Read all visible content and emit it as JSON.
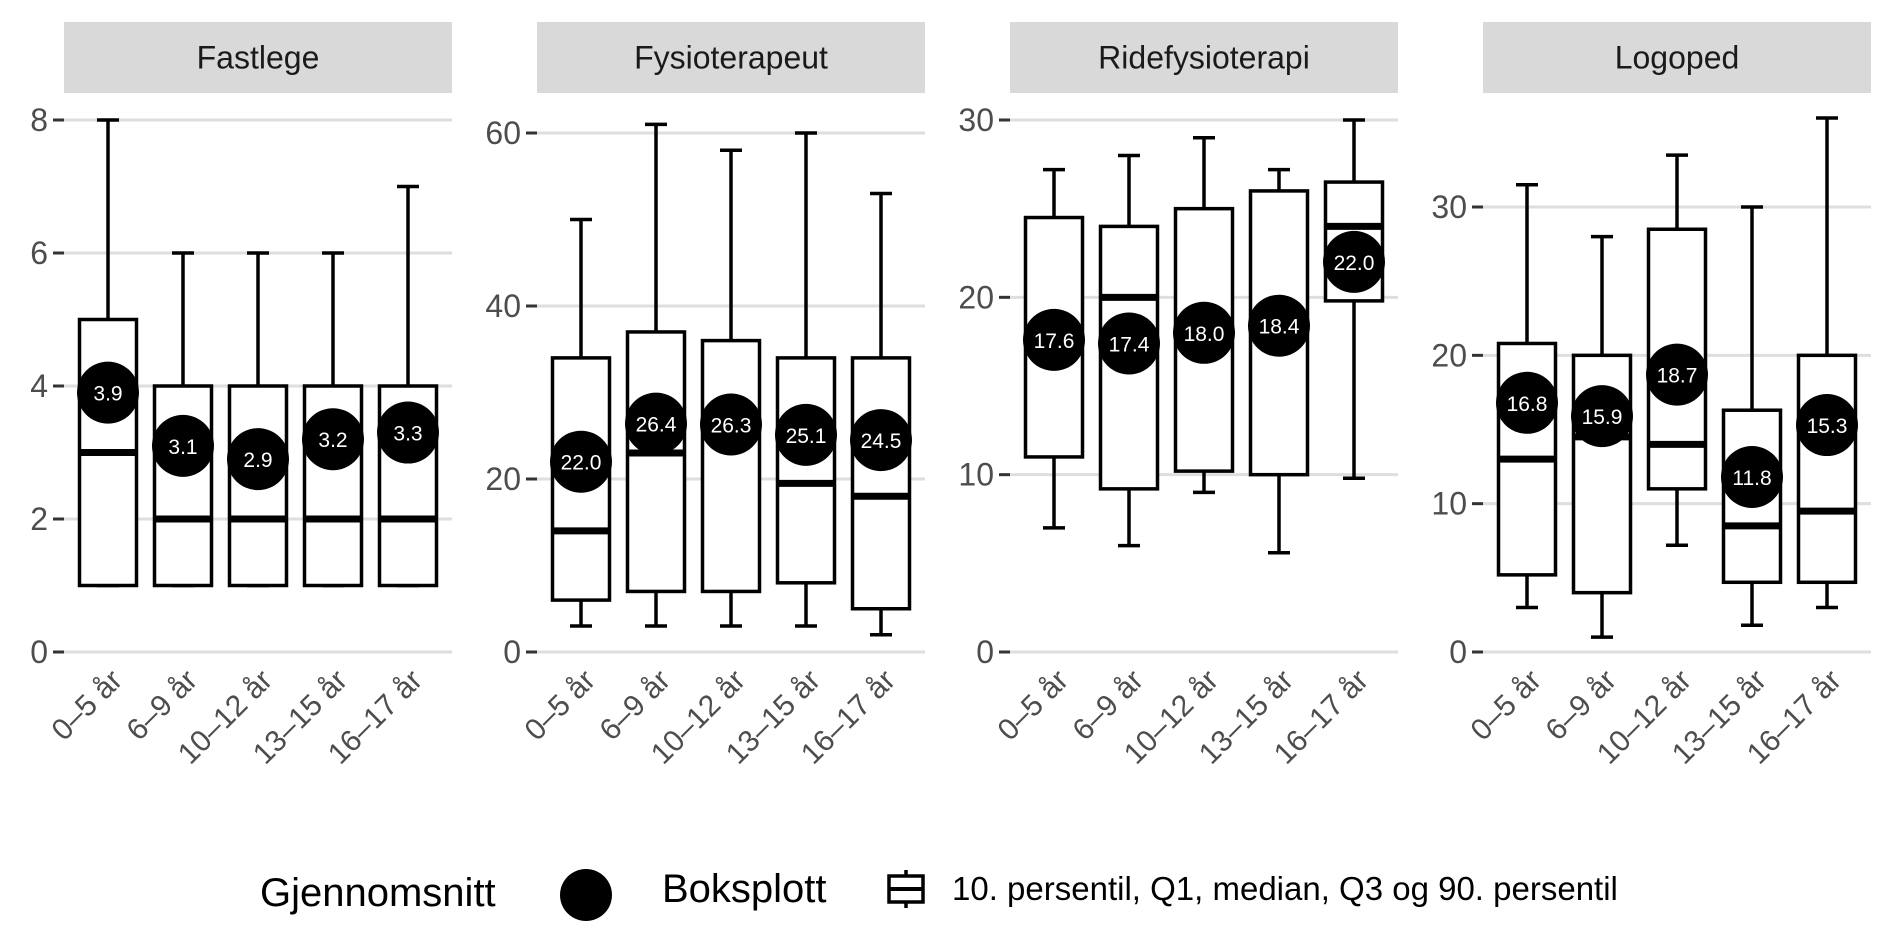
{
  "chart_data": {
    "type": "box",
    "categories": [
      "0–5 år",
      "6–9 år",
      "10–12 år",
      "13–15 år",
      "16–17 år"
    ],
    "panels": [
      {
        "title": "Fastlege",
        "ylim": [
          0,
          8
        ],
        "ticks": [
          0,
          2,
          4,
          6,
          8
        ],
        "boxes": [
          {
            "p10": 1,
            "q1": 1,
            "median": 3,
            "q3": 5,
            "p90": 8,
            "mean": 3.9,
            "mean_label": "3.9"
          },
          {
            "p10": 1,
            "q1": 1,
            "median": 2,
            "q3": 4,
            "p90": 6,
            "mean": 3.1,
            "mean_label": "3.1"
          },
          {
            "p10": 1,
            "q1": 1,
            "median": 2,
            "q3": 4,
            "p90": 6,
            "mean": 2.9,
            "mean_label": "2.9"
          },
          {
            "p10": 1,
            "q1": 1,
            "median": 2,
            "q3": 4,
            "p90": 6,
            "mean": 3.2,
            "mean_label": "3.2"
          },
          {
            "p10": 1,
            "q1": 1,
            "median": 2,
            "q3": 4,
            "p90": 7,
            "mean": 3.3,
            "mean_label": "3.3"
          }
        ]
      },
      {
        "title": "Fysioterapeut",
        "ylim": [
          0,
          60
        ],
        "ticks": [
          0,
          20,
          40,
          60
        ],
        "boxes": [
          {
            "p10": 3,
            "q1": 6,
            "median": 14,
            "q3": 34,
            "p90": 50,
            "mean": 22.0,
            "mean_label": "22.0"
          },
          {
            "p10": 3,
            "q1": 7,
            "median": 23,
            "q3": 37,
            "p90": 61,
            "mean": 26.4,
            "mean_label": "26.4"
          },
          {
            "p10": 3,
            "q1": 7,
            "median": 26,
            "q3": 36,
            "p90": 58,
            "mean": 26.3,
            "mean_label": "26.3"
          },
          {
            "p10": 3,
            "q1": 8,
            "median": 19.5,
            "q3": 34,
            "p90": 60,
            "mean": 25.1,
            "mean_label": "25.1"
          },
          {
            "p10": 2,
            "q1": 5,
            "median": 18,
            "q3": 34,
            "p90": 53,
            "mean": 24.5,
            "mean_label": "24.5"
          }
        ]
      },
      {
        "title": "Ridefysioterapi",
        "ylim": [
          0,
          30
        ],
        "ticks": [
          0,
          10,
          20,
          30
        ],
        "boxes": [
          {
            "p10": 7,
            "q1": 11,
            "median": 17.6,
            "q3": 24.5,
            "p90": 27.2,
            "mean": 17.6,
            "mean_label": "17.6"
          },
          {
            "p10": 6,
            "q1": 9.2,
            "median": 20,
            "q3": 24,
            "p90": 28,
            "mean": 17.4,
            "mean_label": "17.4"
          },
          {
            "p10": 9,
            "q1": 10.2,
            "median": 18,
            "q3": 25,
            "p90": 29,
            "mean": 18.0,
            "mean_label": "18.0"
          },
          {
            "p10": 5.6,
            "q1": 10,
            "median": 18.4,
            "q3": 26,
            "p90": 27.2,
            "mean": 18.4,
            "mean_label": "18.4"
          },
          {
            "p10": 9.8,
            "q1": 19.8,
            "median": 24,
            "q3": 26.5,
            "p90": 30,
            "mean": 22.0,
            "mean_label": "22.0"
          }
        ]
      },
      {
        "title": "Logoped",
        "ylim": [
          0,
          35
        ],
        "ticks": [
          0,
          10,
          20,
          30
        ],
        "boxes": [
          {
            "p10": 3,
            "q1": 5.2,
            "median": 13,
            "q3": 20.8,
            "p90": 31.5,
            "mean": 16.8,
            "mean_label": "16.8"
          },
          {
            "p10": 1,
            "q1": 4,
            "median": 14.5,
            "q3": 20,
            "p90": 28,
            "mean": 15.9,
            "mean_label": "15.9"
          },
          {
            "p10": 7.2,
            "q1": 11,
            "median": 14,
            "q3": 28.5,
            "p90": 33.5,
            "mean": 18.7,
            "mean_label": "18.7"
          },
          {
            "p10": 1.8,
            "q1": 4.7,
            "median": 8.5,
            "q3": 16.3,
            "p90": 30,
            "mean": 11.8,
            "mean_label": "11.8"
          },
          {
            "p10": 3,
            "q1": 4.7,
            "median": 9.5,
            "q3": 20,
            "p90": 36,
            "mean": 15.3,
            "mean_label": "15.3"
          }
        ]
      }
    ],
    "legend": {
      "mean_title": "Gjennomsnitt",
      "box_title": "Boksplott",
      "box_description": "10. persentil, Q1, median, Q3 og 90. persentil",
      "position": "bottom"
    }
  },
  "colors": {
    "strip_bg": "#d9d9d9",
    "gridline": "#dedede",
    "box_stroke": "#000000",
    "mean_fill": "#000000",
    "mean_text": "#ffffff"
  }
}
